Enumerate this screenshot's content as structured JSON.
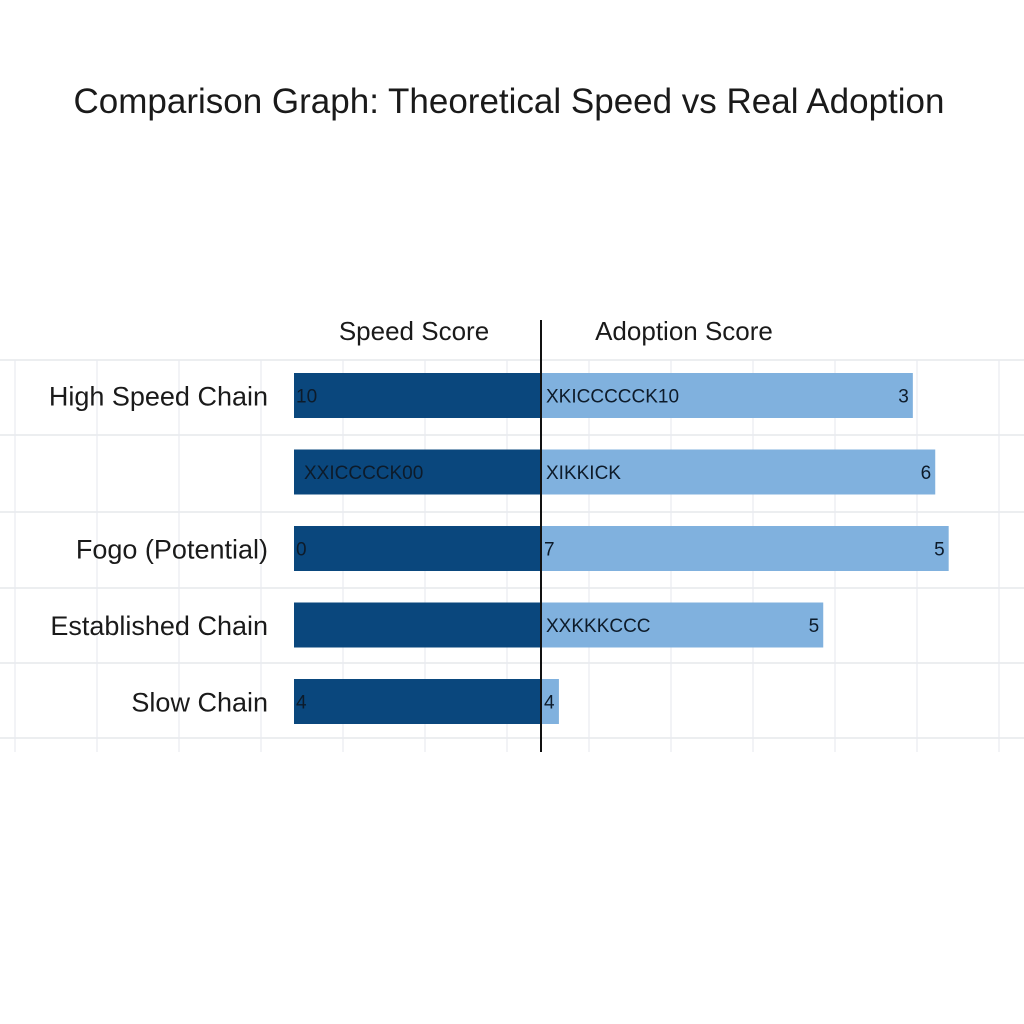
{
  "chart_data": {
    "type": "bar",
    "title": "Comparison Graph: Theoretical Speed vs Real Adoption",
    "left_header": "Speed Score",
    "right_header": "Adoption Score",
    "categories": [
      "High Speed Chain",
      "",
      "Fogo (Potential)",
      "Established Chain",
      "Slow Chain"
    ],
    "grid": true,
    "series": [
      {
        "name": "Speed Score",
        "color": "#0a477d",
        "values": [
          10,
          10,
          10,
          10,
          10
        ],
        "labels": [
          "10",
          "XXICCCCK00",
          "0",
          "",
          "4"
        ]
      },
      {
        "name": "Adoption Score",
        "color": "#80b1de",
        "values": [
          8.3,
          8.8,
          9.1,
          6.3,
          0.4
        ],
        "inner_labels": [
          "XKICCCCCK10",
          "XIKKICK",
          "7",
          "XXKKKCCC",
          "4"
        ],
        "end_labels": [
          "3",
          "6",
          "5",
          "5",
          ""
        ]
      }
    ]
  }
}
